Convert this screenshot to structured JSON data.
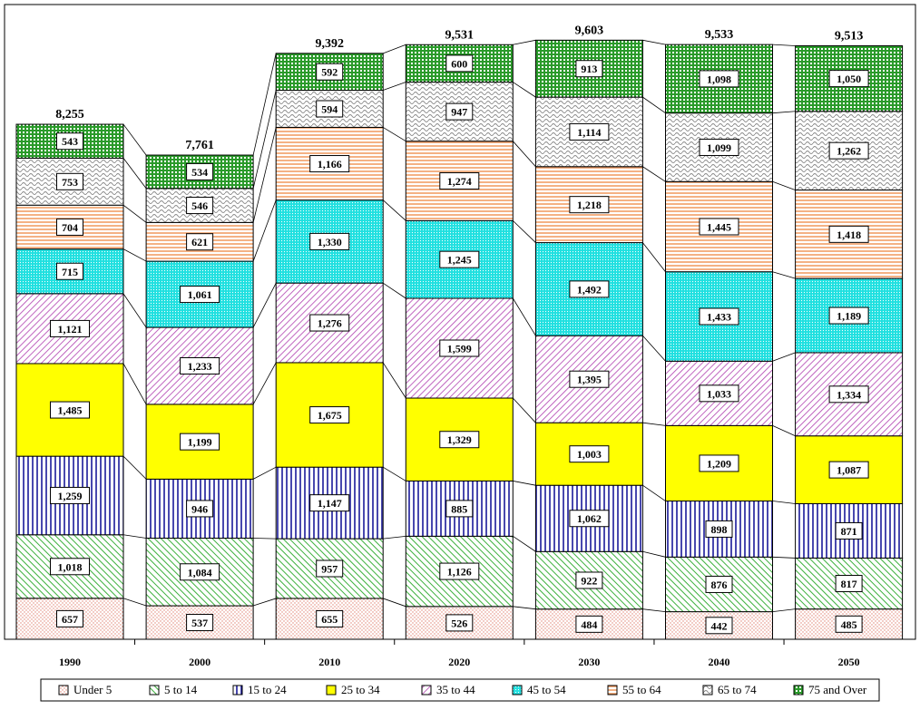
{
  "chart_data": {
    "type": "bar",
    "stacked": true,
    "categories": [
      "1990",
      "2000",
      "2010",
      "2020",
      "2030",
      "2040",
      "2050"
    ],
    "totals": [
      "8,255",
      "7,761",
      "9,392",
      "9,531",
      "9,603",
      "9,533",
      "9,513"
    ],
    "series": [
      {
        "name": "Under 5",
        "values": [
          657,
          537,
          655,
          526,
          484,
          442,
          485
        ],
        "labels": [
          "657",
          "537",
          "655",
          "526",
          "484",
          "442",
          "485"
        ],
        "color": "#f4cfc0",
        "pattern": "dots"
      },
      {
        "name": "5 to 14",
        "values": [
          1018,
          1084,
          957,
          1126,
          922,
          876,
          817
        ],
        "labels": [
          "1,018",
          "1,084",
          "957",
          "1,126",
          "922",
          "876",
          "817"
        ],
        "color": "#9be09b",
        "pattern": "diag-right"
      },
      {
        "name": "15 to 24",
        "values": [
          1259,
          946,
          1147,
          885,
          1062,
          898,
          871
        ],
        "labels": [
          "1,259",
          "946",
          "1,147",
          "885",
          "1,062",
          "898",
          "871"
        ],
        "color": "#1a1a99",
        "pattern": "vertical"
      },
      {
        "name": "25 to 34",
        "values": [
          1485,
          1199,
          1675,
          1329,
          1003,
          1209,
          1087
        ],
        "labels": [
          "1,485",
          "1,199",
          "1,675",
          "1,329",
          "1,003",
          "1,209",
          "1,087"
        ],
        "color": "#ffff00",
        "pattern": "solid"
      },
      {
        "name": "35 to 44",
        "values": [
          1121,
          1233,
          1276,
          1599,
          1395,
          1033,
          1334
        ],
        "labels": [
          "1,121",
          "1,233",
          "1,276",
          "1,599",
          "1,395",
          "1,033",
          "1,334"
        ],
        "color": "#c050c0",
        "pattern": "diag-left"
      },
      {
        "name": "45 to 54",
        "values": [
          715,
          1061,
          1330,
          1245,
          1492,
          1433,
          1189
        ],
        "labels": [
          "715",
          "1,061",
          "1,330",
          "1,245",
          "1,492",
          "1,433",
          "1,189"
        ],
        "color": "#00e5e5",
        "pattern": "fine-dots"
      },
      {
        "name": "55 to 64",
        "values": [
          704,
          621,
          1166,
          1274,
          1218,
          1445,
          1418
        ],
        "labels": [
          "704",
          "621",
          "1,166",
          "1,274",
          "1,218",
          "1,445",
          "1,418"
        ],
        "color": "#f0a060",
        "pattern": "horizontal"
      },
      {
        "name": "65 to 74",
        "values": [
          753,
          546,
          594,
          947,
          1114,
          1099,
          1262
        ],
        "labels": [
          "753",
          "546",
          "594",
          "947",
          "1,114",
          "1,099",
          "1,262"
        ],
        "color": "#a0a0a0",
        "pattern": "wave"
      },
      {
        "name": "75 and Over",
        "values": [
          543,
          534,
          592,
          600,
          913,
          1098,
          1050
        ],
        "labels": [
          "543",
          "534",
          "592",
          "600",
          "913",
          "1,098",
          "1,050"
        ],
        "color": "#2a9a2a",
        "pattern": "grid"
      }
    ],
    "title": "",
    "xlabel": "",
    "ylabel": "",
    "ylim": [
      0,
      10000
    ],
    "grid": false,
    "legend_position": "bottom"
  }
}
